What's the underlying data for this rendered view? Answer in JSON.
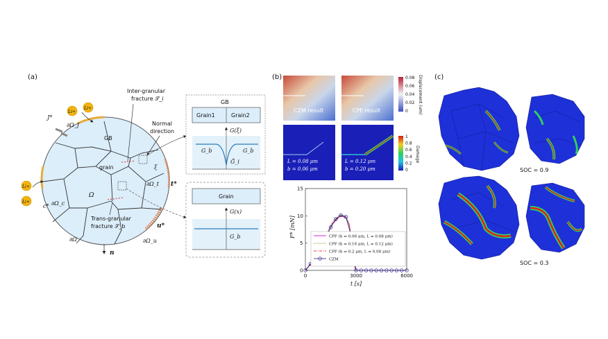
{
  "panel_a": {
    "label": "(a)",
    "j_star": "J*",
    "li1": "Li+",
    "li2": "Li+",
    "li3": "Li+",
    "li4": "Li+",
    "c_star": "c*",
    "d_omega_j": "∂Ω_J",
    "d_omega_c": "∂Ω_c",
    "d_omega": "∂Ω",
    "d_omega_t": "∂Ω_t",
    "d_omega_u": "∂Ω_u",
    "t_star": "t*",
    "u_star": "u*",
    "n": "n",
    "gb": "GB",
    "grain": "grain",
    "omega": "Ω",
    "xi": "ξ",
    "inter_granular": "Inter-granular",
    "fracture_si": "fracture 𝒮_i",
    "trans_granular": "Trans-granular",
    "fracture_sb": "fracture 𝒮_b",
    "normal": "Normal",
    "direction": "direction",
    "box_gb": {
      "title": "GB",
      "grain1": "Grain1",
      "grain2": "Grain2",
      "g_xi": "G(ξ)",
      "gb_left": "G_b",
      "gb_right": "G_b",
      "gi": "G̃_i"
    },
    "box_grain": {
      "title": "Grain",
      "g_x": "G(x)",
      "gb": "G_b"
    }
  },
  "panel_b": {
    "label": "(b)",
    "czm_result": "CZM result",
    "cpf_result": "CPF result",
    "displacement_title": "Displacement (um)",
    "displacement_ticks": [
      "0.08",
      "0.06",
      "0.04",
      "0.02",
      "0"
    ],
    "damage_title": "Damage",
    "damage_ticks": [
      "1",
      "0.8",
      "0.6",
      "0.4",
      "0.2",
      "0"
    ],
    "left_params_l": "L = 0.08 μm",
    "left_params_b": "b = 0.06 μm",
    "right_params_l": "L = 0.12 μm",
    "right_params_b": "b = 0.20 μm"
  },
  "panel_c": {
    "label": "(c)",
    "soc1": "SOC = 0.9",
    "soc2": "SOC = 0.3"
  },
  "colors": {
    "jet_blue": "#1f2fd0",
    "jet_red": "#d81818",
    "cyan_boundary": "#e8aa3a",
    "grain_fill": "#dceefa"
  },
  "chart_data": {
    "type": "line",
    "ylabel": "F* [mN]",
    "xlabel": "t [s]",
    "xlim": [
      0,
      6000
    ],
    "ylim": [
      0,
      15
    ],
    "xticks": [
      "0",
      "3000",
      "6000"
    ],
    "yticks": [
      "0",
      "5",
      "10",
      "15"
    ],
    "legend_position": "center-right",
    "series": [
      {
        "name": "CPF (b = 0.06 μm, L = 0.08 μm)",
        "color": "#d620d6",
        "style": "solid",
        "x": [
          0,
          400,
          800,
          1200,
          1600,
          2000,
          2200,
          2400,
          2600,
          2800,
          2900,
          3000,
          4000,
          6000
        ],
        "y": [
          0,
          1.5,
          3.5,
          6,
          8.6,
          9.9,
          10,
          9.7,
          8.4,
          4,
          0.8,
          0,
          0,
          0
        ]
      },
      {
        "name": "CPF (b = 0.16 μm, L = 0.12 μm)",
        "color": "#8a7a10",
        "style": "dotted",
        "x": [
          0,
          400,
          800,
          1200,
          1600,
          2000,
          2200,
          2400,
          2600,
          2800,
          2900,
          3000,
          4000,
          6000
        ],
        "y": [
          0,
          1.6,
          3.7,
          6.3,
          8.9,
          10.1,
          10.2,
          9.9,
          8.5,
          4.2,
          0.9,
          0,
          0,
          0
        ]
      },
      {
        "name": "CPF (b = 0.2 μm, L = 0.08 μm)",
        "color": "#e04040",
        "style": "dashdot",
        "x": [
          0,
          400,
          800,
          1200,
          1600,
          2000,
          2200,
          2400,
          2600,
          2800,
          2900,
          3000,
          4000,
          6000
        ],
        "y": [
          0,
          1.4,
          3.4,
          5.9,
          8.5,
          9.8,
          9.9,
          9.6,
          8.3,
          3.9,
          0.8,
          0,
          0,
          0
        ]
      },
      {
        "name": "CZM",
        "color": "#1a1a80",
        "style": "circle",
        "x": [
          0,
          300,
          600,
          900,
          1200,
          1500,
          1800,
          2100,
          2400,
          2700,
          3000,
          3300,
          3600,
          3900,
          4200,
          4500,
          4800,
          5100,
          5400,
          5700,
          6000
        ],
        "y": [
          0,
          1.2,
          2.6,
          4.3,
          6.1,
          7.9,
          9.4,
          10.1,
          9.8,
          6.5,
          0,
          0,
          0,
          0,
          0,
          0,
          0,
          0,
          0,
          0,
          0
        ]
      }
    ]
  }
}
